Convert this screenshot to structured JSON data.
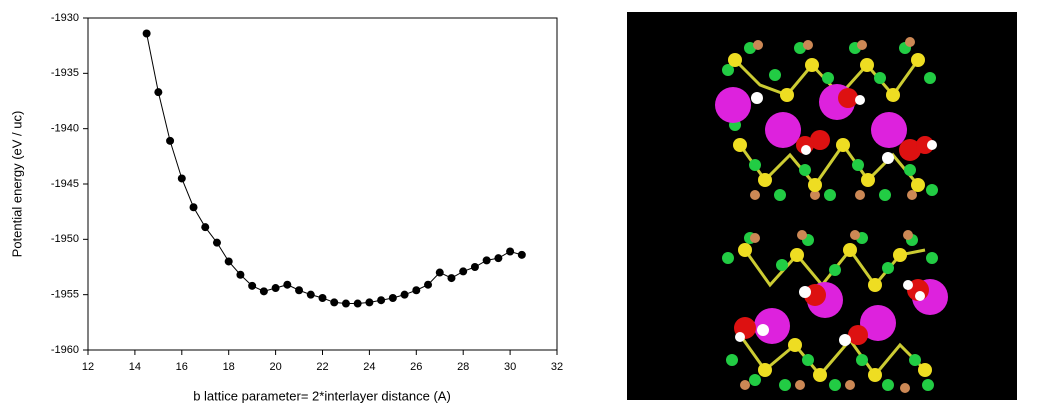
{
  "chart_data": {
    "type": "line",
    "xlabel": "b lattice parameter= 2*interlayer distance (A)",
    "ylabel": "Potential energy (eV / uc)",
    "x": [
      14.5,
      15,
      15.5,
      16,
      16.5,
      17,
      17.5,
      18,
      18.5,
      19,
      19.5,
      20,
      20.5,
      21,
      21.5,
      22,
      22.5,
      23,
      23.5,
      24,
      24.5,
      25,
      25.5,
      26,
      26.5,
      27,
      27.5,
      28,
      28.5,
      29,
      29.5,
      30,
      30.5
    ],
    "values": [
      -1931.4,
      -1936.7,
      -1941.1,
      -1944.5,
      -1947.1,
      -1948.9,
      -1950.3,
      -1952.0,
      -1953.2,
      -1954.2,
      -1954.7,
      -1954.4,
      -1954.1,
      -1954.6,
      -1955.0,
      -1955.3,
      -1955.7,
      -1955.8,
      -1955.8,
      -1955.7,
      -1955.5,
      -1955.3,
      -1955.0,
      -1954.6,
      -1954.1,
      -1953.0,
      -1953.5,
      -1952.9,
      -1952.5,
      -1951.9,
      -1951.7,
      -1951.1,
      -1951.4
    ],
    "color": "#000000",
    "xlim": [
      12,
      32
    ],
    "xticks": [
      12,
      14,
      16,
      18,
      20,
      22,
      24,
      26,
      28,
      30,
      32
    ],
    "ylim": [
      -1960,
      -1930
    ],
    "yticks": [
      -1960,
      -1955,
      -1950,
      -1945,
      -1940,
      -1935,
      -1930
    ],
    "grid": false
  }
}
